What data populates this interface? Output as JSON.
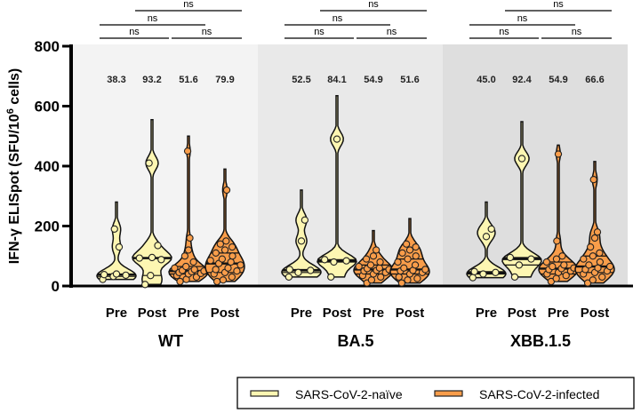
{
  "chart_data": {
    "type": "violin",
    "ylabel": "IFN-γ ELISpot (SFU/10",
    "ylabel_sup": "6",
    "ylabel_end": " cells)",
    "ylim": [
      0,
      800
    ],
    "yticks": [
      "0",
      "200",
      "400",
      "600",
      "800"
    ],
    "yticks_values": [
      0,
      200,
      400,
      600,
      800
    ],
    "colors": {
      "naive": "#fdf6b2",
      "infected": "#f99d4a",
      "panels": [
        "#f3f3f3",
        "#e9e9e9",
        "#dedede"
      ]
    },
    "legend": {
      "position": "bottom-right",
      "items": [
        {
          "label": "SARS-CoV-2-naïve",
          "group": "naive"
        },
        {
          "label": "SARS-CoV-2-infected",
          "group": "infected"
        }
      ]
    },
    "panels": [
      {
        "name": "WT",
        "groups": [
          {
            "tick": "Pre",
            "group": "naive",
            "median_label": "38.3",
            "max": 280,
            "points": [
              22,
              32,
              36,
              38,
              40,
              130,
              190
            ]
          },
          {
            "tick": "Post",
            "group": "naive",
            "median_label": "93.2",
            "max": 555,
            "points": [
              5,
              35,
              88,
              93,
              95,
              135,
              410
            ]
          },
          {
            "tick": "Pre",
            "group": "infected",
            "median_label": "51.6",
            "max": 500,
            "points": [
              15,
              22,
              30,
              35,
              40,
              42,
              45,
              48,
              50,
              52,
              55,
              60,
              65,
              80,
              100,
              120,
              160,
              450
            ]
          },
          {
            "tick": "Post",
            "group": "infected",
            "median_label": "79.9",
            "max": 390,
            "points": [
              15,
              20,
              30,
              40,
              45,
              50,
              55,
              60,
              70,
              75,
              80,
              85,
              90,
              100,
              110,
              120,
              130,
              140,
              150,
              320
            ]
          }
        ]
      },
      {
        "name": "BA.5",
        "groups": [
          {
            "tick": "Pre",
            "group": "naive",
            "median_label": "52.5",
            "max": 320,
            "points": [
              30,
              45,
              52,
              55,
              150,
              220
            ]
          },
          {
            "tick": "Post",
            "group": "naive",
            "median_label": "84.1",
            "max": 635,
            "points": [
              30,
              80,
              84,
              88,
              490
            ]
          },
          {
            "tick": "Pre",
            "group": "infected",
            "median_label": "54.9",
            "max": 185,
            "points": [
              10,
              20,
              30,
              35,
              40,
              45,
              50,
              52,
              55,
              58,
              60,
              65,
              70,
              80,
              90,
              100,
              120
            ]
          },
          {
            "tick": "Post",
            "group": "infected",
            "median_label": "51.6",
            "max": 225,
            "points": [
              10,
              20,
              25,
              30,
              40,
              45,
              50,
              52,
              55,
              60,
              70,
              80,
              90,
              100,
              110,
              120,
              130,
              140
            ]
          }
        ]
      },
      {
        "name": "XBB.1.5",
        "groups": [
          {
            "tick": "Pre",
            "group": "naive",
            "median_label": "45.0",
            "max": 280,
            "points": [
              28,
              40,
              45,
              48,
              165,
              190
            ]
          },
          {
            "tick": "Post",
            "group": "naive",
            "median_label": "92.4",
            "max": 548,
            "points": [
              30,
              70,
              90,
              95,
              425
            ]
          },
          {
            "tick": "Pre",
            "group": "infected",
            "median_label": "54.9",
            "max": 470,
            "points": [
              15,
              25,
              35,
              40,
              45,
              50,
              55,
              58,
              60,
              65,
              70,
              80,
              90,
              100,
              150,
              440
            ]
          },
          {
            "tick": "Post",
            "group": "infected",
            "median_label": "66.6",
            "max": 415,
            "points": [
              10,
              20,
              30,
              40,
              45,
              50,
              55,
              60,
              65,
              70,
              80,
              90,
              100,
              110,
              130,
              160,
              180,
              355
            ]
          }
        ]
      }
    ],
    "comparisons": [
      {
        "pair": [
          0,
          1
        ],
        "label": "ns",
        "level": 0
      },
      {
        "pair": [
          2,
          3
        ],
        "label": "ns",
        "level": 0
      },
      {
        "pair": [
          0,
          2
        ],
        "label": "ns",
        "level": 1
      },
      {
        "pair": [
          1,
          3
        ],
        "label": "ns",
        "level": 2
      }
    ]
  }
}
